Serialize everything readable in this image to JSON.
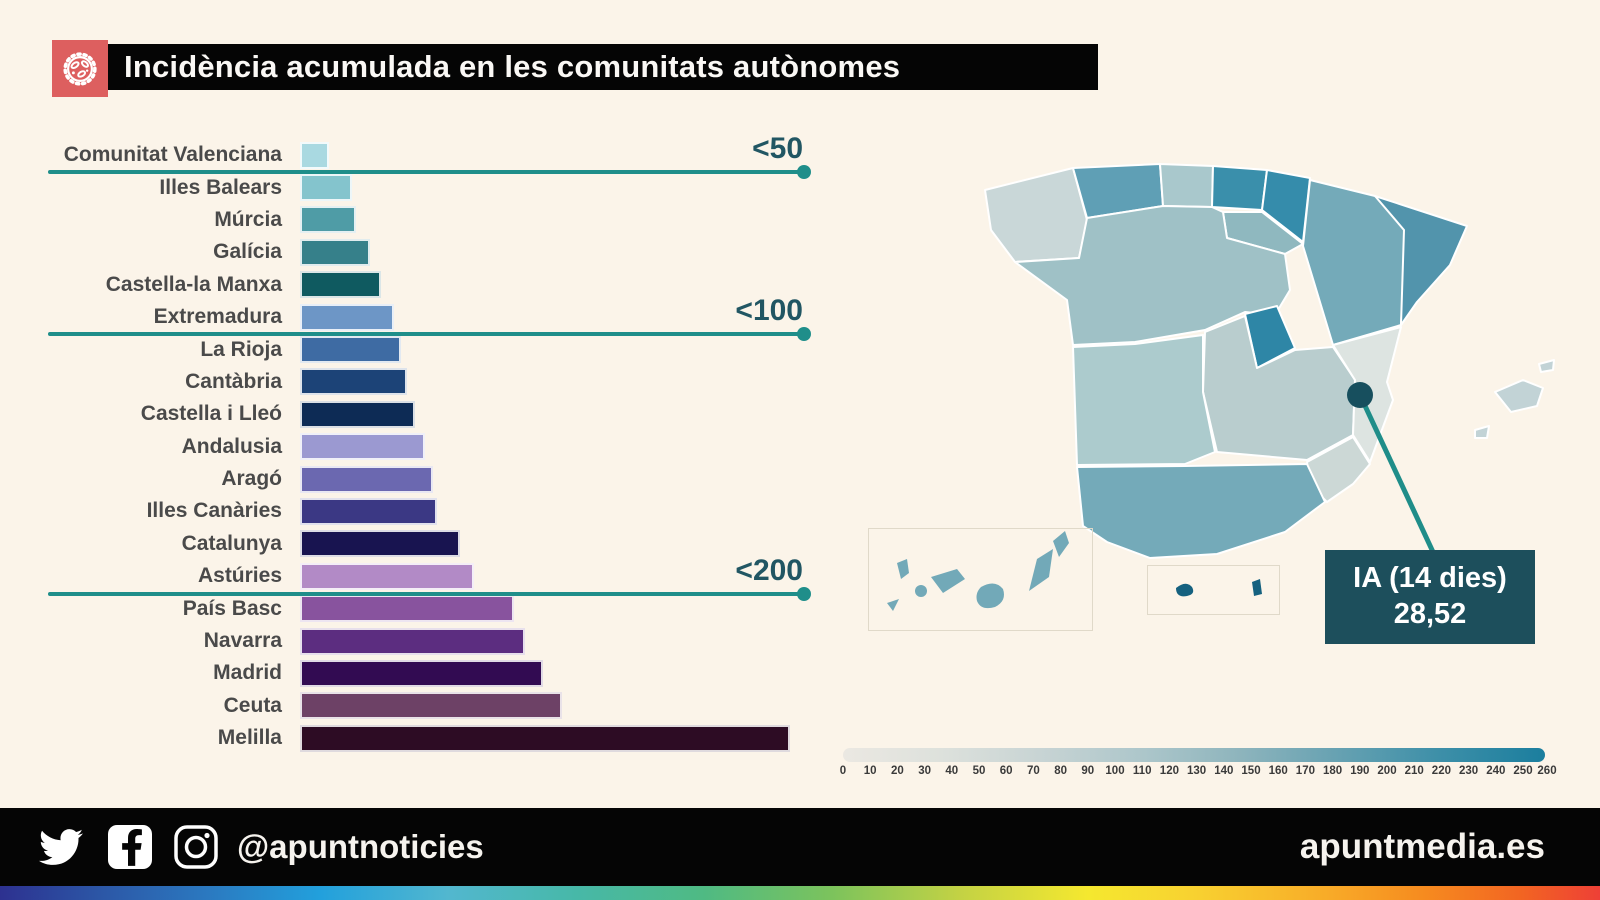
{
  "page": {
    "background": "#fbf4e9"
  },
  "header": {
    "title": "Incidència acumulada en les comunitats autònomes",
    "icon": "virus-icon",
    "icon_bg": "#dd5f5f"
  },
  "chart_data": {
    "type": "bar",
    "orientation": "horizontal",
    "title": "Incidència acumulada en les comunitats autònomes",
    "categories": [
      "Comunitat Valenciana",
      "Illes Balears",
      "Múrcia",
      "Galícia",
      "Castella-la Manxa",
      "Extremadura",
      "La Rioja",
      "Cantàbria",
      "Castella i Lleó",
      "Andalusia",
      "Aragó",
      "Illes Canàries",
      "Catalunya",
      "Astúries",
      "País Basc",
      "Navarra",
      "Madrid",
      "Ceuta",
      "Melilla"
    ],
    "values": [
      28.52,
      52,
      56,
      70,
      81,
      94,
      101,
      107,
      115,
      125,
      133,
      137,
      160,
      174,
      214,
      225,
      243,
      262,
      490
    ],
    "bar_colors": [
      "#a9d9e1",
      "#84c4cd",
      "#4f9ca6",
      "#36808a",
      "#0f5a60",
      "#6d96c6",
      "#3e6ba3",
      "#1c4377",
      "#0d2b55",
      "#9b99d1",
      "#6b68b0",
      "#3b3884",
      "#181450",
      "#b28ac6",
      "#88539e",
      "#5c2d80",
      "#320b52",
      "#6d4166",
      "#2d0c24"
    ],
    "thresholds": [
      {
        "label": "<50",
        "after_index": 0
      },
      {
        "label": "<100",
        "after_index": 5
      },
      {
        "label": "<200",
        "after_index": 13
      }
    ],
    "threshold_color": "#1f8e8a",
    "label_color": "#4a4a4a",
    "xlim": [
      0,
      500
    ]
  },
  "map": {
    "callout": {
      "line1": "IA (14 dies)",
      "line2": "28,52",
      "bg": "#1d4f5c"
    },
    "marker": {
      "region": "Comunitat Valenciana",
      "color": "#174f5e"
    },
    "legend": {
      "ticks": [
        "0",
        "10",
        "20",
        "30",
        "40",
        "50",
        "60",
        "70",
        "80",
        "90",
        "100",
        "110",
        "120",
        "130",
        "140",
        "150",
        "160",
        "170",
        "180",
        "190",
        "200",
        "210",
        "220",
        "230",
        "240",
        "250",
        "260"
      ],
      "min_color": "#ebe8e2",
      "max_color": "#1b7e9e"
    },
    "regions": [
      {
        "name": "Galícia",
        "color": "#c9d7d8"
      },
      {
        "name": "Astúries",
        "color": "#5f9fb5"
      },
      {
        "name": "Cantàbria",
        "color": "#a9c8cc"
      },
      {
        "name": "País Basc",
        "color": "#3a8fab"
      },
      {
        "name": "Navarra",
        "color": "#358cab"
      },
      {
        "name": "La Rioja",
        "color": "#8fb8bf"
      },
      {
        "name": "Aragó",
        "color": "#74aab9"
      },
      {
        "name": "Catalunya",
        "color": "#5294ac"
      },
      {
        "name": "Castella i Lleó",
        "color": "#9fc1c6"
      },
      {
        "name": "Madrid",
        "color": "#2e86a6"
      },
      {
        "name": "Castella-la Manxa",
        "color": "#b9cdce"
      },
      {
        "name": "Comunitat Valenciana",
        "color": "#dde4e1"
      },
      {
        "name": "Múrcia",
        "color": "#ccd8d6"
      },
      {
        "name": "Extremadura",
        "color": "#accbcd"
      },
      {
        "name": "Andalusia",
        "color": "#74aab9"
      },
      {
        "name": "Illes Balears",
        "color": "#c2d3d6"
      },
      {
        "name": "Illes Canàries",
        "color": "#72a9b8"
      },
      {
        "name": "Ceuta",
        "color": "#15617f"
      },
      {
        "name": "Melilla",
        "color": "#15617f"
      }
    ]
  },
  "footer": {
    "icons": [
      "twitter-icon",
      "facebook-icon",
      "instagram-icon"
    ],
    "handle": "@apuntnoticies",
    "site": "apuntmedia.es"
  }
}
